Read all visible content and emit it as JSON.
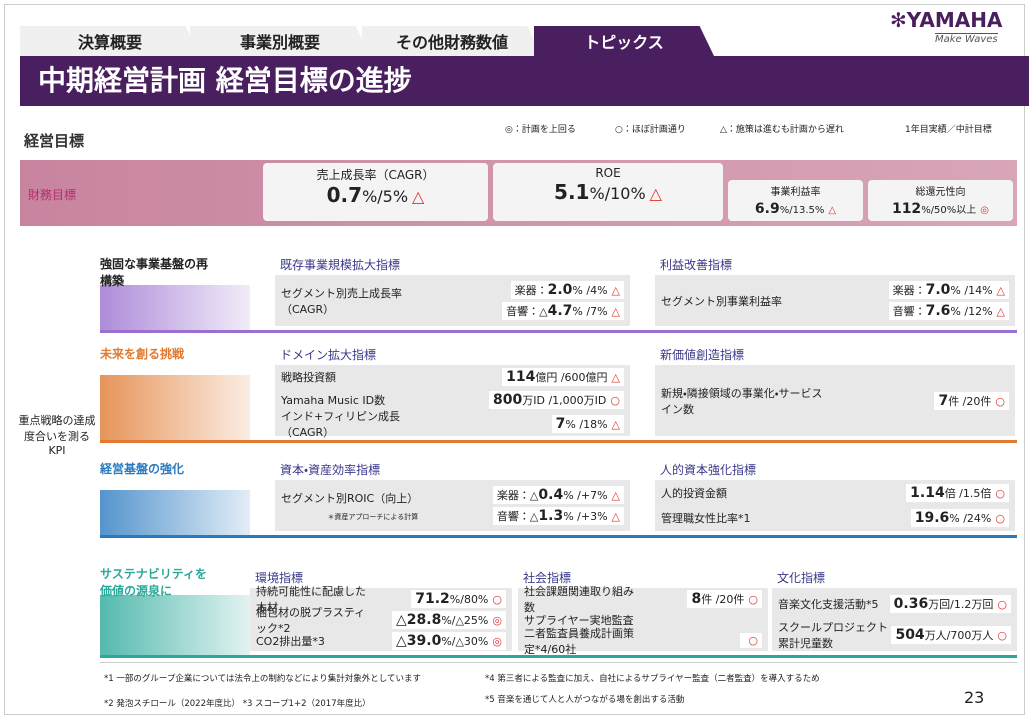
{
  "header": {
    "tabs": [
      "決算概要",
      "事業別概要",
      "その他財務数値",
      "トピックス"
    ],
    "logo": "YAMAHA",
    "tagline": "Make Waves"
  },
  "title": "中期経営計画 経営目標の進捗",
  "section": "経営目標",
  "legend": [
    "◎：計画を上回る",
    "○：ほぼ計画通り",
    "△：施策は進むも計画から遅れ"
  ],
  "legend_note": "1年目実績／中計目標",
  "financial": {
    "label": "財務目標",
    "items": [
      {
        "name": "売上成長率（CAGR）",
        "big": "0.7",
        "rest": "%/5%",
        "mark": "△"
      },
      {
        "name": "ROE",
        "big": "5.1",
        "rest": "%/10%",
        "mark": "△"
      },
      {
        "name": "事業利益率",
        "big": "6.9",
        "rest": "%/13.5%",
        "mark": "△"
      },
      {
        "name": "総還元性向",
        "big": "112",
        "rest": "%/50%以上",
        "mark": "◎"
      }
    ]
  },
  "kpi_label": "重点戦略の達成度合いを測るKPI",
  "strategies": [
    {
      "label": "強固な事業基盤の再構築",
      "groups": [
        {
          "heading": "既存事業規模拡大指標",
          "items": [
            {
              "name": "セグメント別売上成長率（CAGR）",
              "lines": [
                {
                  "pre": "楽器：",
                  "big": "2.0",
                  "rest": "% /4%",
                  "mark": "△"
                },
                {
                  "pre": "音響：△",
                  "big": "4.7",
                  "rest": "% /7%",
                  "mark": "△"
                }
              ]
            }
          ]
        },
        {
          "heading": "利益改善指標",
          "items": [
            {
              "name": "セグメント別事業利益率",
              "lines": [
                {
                  "pre": "楽器：",
                  "big": "7.0",
                  "rest": "% /14%",
                  "mark": "△"
                },
                {
                  "pre": "音響：",
                  "big": "7.6",
                  "rest": "% /12%",
                  "mark": "△"
                }
              ]
            }
          ]
        }
      ]
    },
    {
      "label": "未来を創る挑戦",
      "groups": [
        {
          "heading": "ドメイン拡大指標",
          "items": [
            {
              "name": "戦略投資額",
              "big": "114",
              "rest": "億円 /600億円",
              "mark": "△"
            },
            {
              "name": "Yamaha Music ID数",
              "big": "800",
              "rest": "万ID /1,000万ID",
              "mark": "○"
            },
            {
              "name": "インド+フィリピン成長（CAGR）",
              "big": "7",
              "rest": "% /18%",
              "mark": "△"
            }
          ]
        },
        {
          "heading": "新価値創造指標",
          "items": [
            {
              "name": "新規・隣接領域の事業化・サービスイン数",
              "big": "7",
              "rest": "件 /20件",
              "mark": "○"
            }
          ]
        }
      ]
    },
    {
      "label": "経営基盤の強化",
      "groups": [
        {
          "heading": "資本・資産効率指標",
          "items": [
            {
              "name": "セグメント別ROIC（向上）",
              "note": "＊資産アプローチによる計算",
              "lines": [
                {
                  "pre": "楽器：△",
                  "big": "0.4",
                  "rest": "% /+7%",
                  "mark": "△"
                },
                {
                  "pre": "音響：△",
                  "big": "1.3",
                  "rest": "% /+3%",
                  "mark": "△"
                }
              ]
            }
          ]
        },
        {
          "heading": "人的資本強化指標",
          "items": [
            {
              "name": "人的投資金額",
              "big": "1.14",
              "rest": "倍 /1.5倍",
              "mark": "○"
            },
            {
              "name": "管理職女性比率*1",
              "big": "19.6",
              "rest": "% /24%",
              "mark": "○"
            }
          ]
        }
      ]
    },
    {
      "label": "サステナビリティを価値の源泉に",
      "groups": [
        {
          "heading": "環境指標",
          "items": [
            {
              "name": "持続可能性に配慮した木材",
              "big": "71.2",
              "rest": "%/80%",
              "mark": "○"
            },
            {
              "name": "梱包材の脱プラスティック*2",
              "big": "△28.8",
              "rest": "%/△25%",
              "mark": "◎"
            },
            {
              "name": "CO2排出量*3",
              "big": "△39.0",
              "rest": "%/△30%",
              "mark": "◎"
            }
          ]
        },
        {
          "heading": "社会指標",
          "items": [
            {
              "name": "社会課題関連取り組み数",
              "big": "8",
              "rest": "件 /20件",
              "mark": "○"
            },
            {
              "name": "サプライヤー実地監査"
            },
            {
              "name": "二者監査員養成計画策定*4/60社",
              "mark": "○"
            }
          ]
        },
        {
          "heading": "文化指標",
          "items": [
            {
              "name": "音楽文化支援活動*5",
              "big": "0.36",
              "rest": "万回/1.2万回",
              "mark": "○"
            },
            {
              "name": "スクールプロジェクト累計児童数",
              "big": "504",
              "rest": "万人/700万人",
              "mark": "○"
            }
          ]
        }
      ]
    }
  ],
  "footnotes": [
    "*1 一部のグループ企業については法令上の制約などにより集計対象外としています",
    "*4 第三者による監査に加え、自社によるサプライヤー監査（二者監査）を導入するため",
    "*2 発泡スチロール（2022年度比） *3 スコープ1+2（2017年度比）",
    "*5 音楽を通じて人と人がつながる場を創出する活動"
  ],
  "page_number": "23"
}
